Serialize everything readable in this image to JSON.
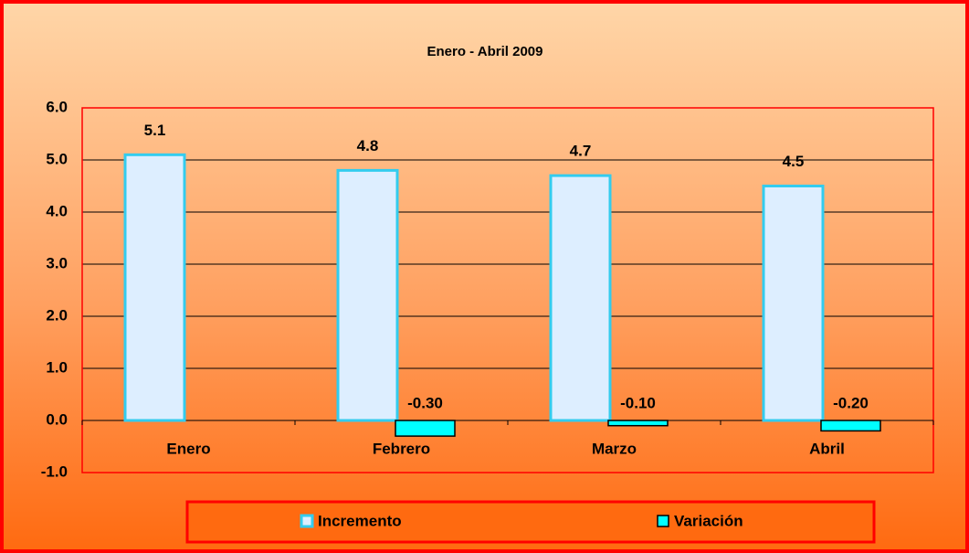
{
  "chart_data": {
    "type": "bar",
    "title": "Enero - Abril 2009",
    "categories": [
      "Enero",
      "Febrero",
      "Marzo",
      "Abril"
    ],
    "series": [
      {
        "name": "Incremento",
        "color": "#ddeeff",
        "edge": "#33ccee",
        "values": [
          5.1,
          4.8,
          4.7,
          4.5
        ]
      },
      {
        "name": "Variación",
        "color": "#00ffff",
        "edge": "#000000",
        "values": [
          null,
          -0.3,
          -0.1,
          -0.2
        ],
        "value_labels": [
          null,
          "-0.30",
          "-0.10",
          "-0.20"
        ]
      }
    ],
    "ylim": [
      -1,
      6
    ],
    "yticks": [
      {
        "value": -1,
        "label": "-1.0"
      },
      {
        "value": 0,
        "label": "0.0"
      },
      {
        "value": 1,
        "label": "1.0"
      },
      {
        "value": 2,
        "label": "2.0"
      },
      {
        "value": 3,
        "label": "3.0"
      },
      {
        "value": 4,
        "label": "4.0"
      },
      {
        "value": 5,
        "label": "5.0"
      },
      {
        "value": 6,
        "label": "6.0"
      }
    ],
    "grid": true,
    "legend": "bottom"
  }
}
